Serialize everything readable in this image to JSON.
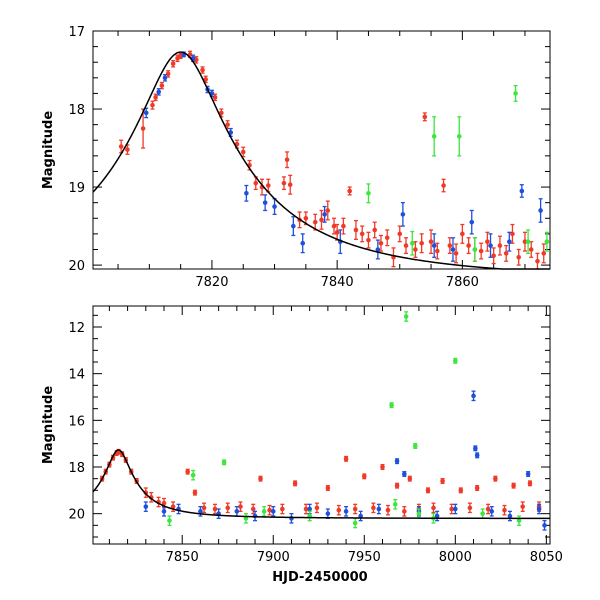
{
  "chart_data": [
    {
      "type": "scatter",
      "panel": "top",
      "xlabel": "",
      "ylabel": "Magnitude",
      "xlim": [
        7801,
        7874
      ],
      "ylim": [
        20.05,
        17.0
      ],
      "y_inverted": true,
      "x_ticks": [
        7820,
        7840,
        7860
      ],
      "y_ticks": [
        17,
        18,
        19,
        20
      ],
      "grid": false,
      "model_curve": {
        "peak_x": 7815.0,
        "peak_mag": 17.27,
        "amplitude_flux": 14.0,
        "tE_days": 5.5,
        "color": "#000000"
      },
      "series": [
        {
          "color": "#f03a28",
          "points": [
            [
              7805.5,
              18.48,
              0.08
            ],
            [
              7806.5,
              18.52,
              0.06
            ],
            [
              7809.0,
              18.25,
              0.25
            ],
            [
              7810.5,
              17.95,
              0.05
            ],
            [
              7811.0,
              17.85,
              0.04
            ],
            [
              7812.0,
              17.7,
              0.04
            ],
            [
              7813.0,
              17.55,
              0.04
            ],
            [
              7813.8,
              17.42,
              0.04
            ],
            [
              7814.5,
              17.35,
              0.04
            ],
            [
              7815.0,
              17.32,
              0.03
            ],
            [
              7816.5,
              17.3,
              0.04
            ],
            [
              7817.5,
              17.37,
              0.04
            ],
            [
              7818.5,
              17.5,
              0.04
            ],
            [
              7819.0,
              17.62,
              0.04
            ],
            [
              7820.5,
              17.85,
              0.04
            ],
            [
              7821.5,
              18.05,
              0.05
            ],
            [
              7822.5,
              18.2,
              0.05
            ],
            [
              7824.0,
              18.45,
              0.05
            ],
            [
              7825.0,
              18.55,
              0.06
            ],
            [
              7826.0,
              18.72,
              0.06
            ],
            [
              7827.0,
              18.95,
              0.08
            ],
            [
              7828.0,
              19.0,
              0.1
            ],
            [
              7829.0,
              18.98,
              0.08
            ],
            [
              7831.5,
              18.95,
              0.08
            ],
            [
              7832.0,
              18.65,
              0.1
            ],
            [
              7832.5,
              18.97,
              0.12
            ],
            [
              7834.0,
              19.42,
              0.1
            ],
            [
              7835.0,
              19.4,
              0.08
            ],
            [
              7836.5,
              19.45,
              0.1
            ],
            [
              7837.5,
              19.42,
              0.12
            ],
            [
              7838.5,
              19.3,
              0.12
            ],
            [
              7839.5,
              19.5,
              0.1
            ],
            [
              7840.0,
              19.58,
              0.1
            ],
            [
              7841.0,
              19.5,
              0.1
            ],
            [
              7842.0,
              19.05,
              0.05
            ],
            [
              7843.0,
              19.55,
              0.12
            ],
            [
              7844.0,
              19.6,
              0.1
            ],
            [
              7845.0,
              19.68,
              0.1
            ],
            [
              7846.0,
              19.55,
              0.1
            ],
            [
              7847.0,
              19.72,
              0.1
            ],
            [
              7848.0,
              19.65,
              0.1
            ],
            [
              7849.0,
              19.9,
              0.12
            ],
            [
              7850.0,
              19.6,
              0.1
            ],
            [
              7851.0,
              19.75,
              0.1
            ],
            [
              7852.5,
              19.8,
              0.1
            ],
            [
              7853.5,
              19.72,
              0.12
            ],
            [
              7854.0,
              18.1,
              0.05
            ],
            [
              7855.0,
              19.7,
              0.15
            ],
            [
              7856.0,
              19.82,
              0.1
            ],
            [
              7857.0,
              18.98,
              0.08
            ],
            [
              7858.0,
              19.75,
              0.1
            ],
            [
              7859.0,
              19.85,
              0.12
            ],
            [
              7860.0,
              19.6,
              0.12
            ],
            [
              7861.0,
              19.75,
              0.1
            ],
            [
              7862.0,
              19.8,
              0.15
            ],
            [
              7863.0,
              19.82,
              0.1
            ],
            [
              7864.0,
              19.7,
              0.12
            ],
            [
              7865.0,
              19.88,
              0.1
            ],
            [
              7866.0,
              19.75,
              0.12
            ],
            [
              7867.0,
              19.85,
              0.1
            ],
            [
              7868.0,
              19.6,
              0.12
            ],
            [
              7869.0,
              19.9,
              0.1
            ],
            [
              7870.0,
              19.7,
              0.12
            ],
            [
              7871.0,
              19.8,
              0.1
            ],
            [
              7872.0,
              19.95,
              0.1
            ],
            [
              7873.0,
              19.85,
              0.12
            ]
          ]
        },
        {
          "color": "#1e50dc",
          "points": [
            [
              7809.5,
              18.05,
              0.06
            ],
            [
              7811.5,
              17.78,
              0.04
            ],
            [
              7812.5,
              17.6,
              0.04
            ],
            [
              7815.5,
              17.3,
              0.03
            ],
            [
              7817.0,
              17.35,
              0.04
            ],
            [
              7819.3,
              17.75,
              0.04
            ],
            [
              7820.0,
              17.8,
              0.04
            ],
            [
              7823.0,
              18.3,
              0.05
            ],
            [
              7825.5,
              19.08,
              0.1
            ],
            [
              7828.5,
              19.2,
              0.1
            ],
            [
              7830.0,
              19.25,
              0.1
            ],
            [
              7833.0,
              19.5,
              0.12
            ],
            [
              7834.5,
              19.72,
              0.12
            ],
            [
              7838.0,
              19.35,
              0.1
            ],
            [
              7840.5,
              19.7,
              0.15
            ],
            [
              7846.5,
              19.8,
              0.12
            ],
            [
              7850.5,
              19.35,
              0.15
            ],
            [
              7855.5,
              19.75,
              0.15
            ],
            [
              7858.5,
              19.8,
              0.15
            ],
            [
              7861.5,
              19.45,
              0.15
            ],
            [
              7864.5,
              19.75,
              0.15
            ],
            [
              7867.5,
              19.7,
              0.12
            ],
            [
              7869.5,
              19.05,
              0.08
            ],
            [
              7872.5,
              19.3,
              0.15
            ]
          ]
        },
        {
          "color": "#3ce63c",
          "points": [
            [
              7845.0,
              19.08,
              0.12
            ],
            [
              7852.0,
              19.72,
              0.15
            ],
            [
              7855.5,
              18.35,
              0.25
            ],
            [
              7859.5,
              18.35,
              0.25
            ],
            [
              7862.0,
              19.8,
              0.15
            ],
            [
              7868.5,
              17.8,
              0.1
            ],
            [
              7870.5,
              19.7,
              0.15
            ],
            [
              7873.5,
              19.7,
              0.12
            ]
          ]
        }
      ]
    },
    {
      "type": "scatter",
      "panel": "bottom",
      "xlabel": "HJD-2450000",
      "ylabel": "Magnitude",
      "xlim": [
        7801,
        8052
      ],
      "ylim": [
        21.3,
        11.1
      ],
      "y_inverted": true,
      "x_ticks": [
        7850,
        7900,
        7950,
        8000,
        8050
      ],
      "y_ticks": [
        12,
        14,
        16,
        18,
        20
      ],
      "grid": false,
      "model_curve": {
        "peak_x": 7815.0,
        "peak_mag": 17.27,
        "amplitude_flux": 14.0,
        "tE_days": 5.5,
        "color": "#000000"
      },
      "series": [
        {
          "color": "#f03a28",
          "points": [
            [
              7806,
              18.5,
              0.1
            ],
            [
              7808,
              18.2,
              0.1
            ],
            [
              7810,
              17.9,
              0.1
            ],
            [
              7812,
              17.6,
              0.1
            ],
            [
              7814,
              17.4,
              0.1
            ],
            [
              7815,
              17.35,
              0.1
            ],
            [
              7817,
              17.45,
              0.1
            ],
            [
              7819,
              17.7,
              0.1
            ],
            [
              7822,
              18.2,
              0.1
            ],
            [
              7825,
              18.6,
              0.1
            ],
            [
              7830,
              19.1,
              0.2
            ],
            [
              7833,
              19.3,
              0.2
            ],
            [
              7837,
              19.5,
              0.2
            ],
            [
              7840,
              19.55,
              0.2
            ],
            [
              7845,
              19.7,
              0.2
            ],
            [
              7853,
              18.2,
              0.1
            ],
            [
              7857,
              19.1,
              0.1
            ],
            [
              7862,
              19.75,
              0.2
            ],
            [
              7868,
              19.8,
              0.2
            ],
            [
              7875,
              19.75,
              0.2
            ],
            [
              7882,
              19.7,
              0.2
            ],
            [
              7889,
              19.8,
              0.2
            ],
            [
              7893,
              18.5,
              0.1
            ],
            [
              7898,
              19.85,
              0.2
            ],
            [
              7905,
              19.8,
              0.2
            ],
            [
              7912,
              18.7,
              0.1
            ],
            [
              7918,
              19.8,
              0.2
            ],
            [
              7924,
              19.75,
              0.2
            ],
            [
              7930,
              18.9,
              0.1
            ],
            [
              7936,
              19.85,
              0.2
            ],
            [
              7940,
              17.65,
              0.1
            ],
            [
              7945,
              19.8,
              0.2
            ],
            [
              7950,
              18.4,
              0.1
            ],
            [
              7955,
              19.75,
              0.2
            ],
            [
              7960,
              18.0,
              0.1
            ],
            [
              7963,
              19.85,
              0.2
            ],
            [
              7968,
              18.8,
              0.1
            ],
            [
              7972,
              19.9,
              0.2
            ],
            [
              7975,
              18.5,
              0.1
            ],
            [
              7980,
              19.8,
              0.2
            ],
            [
              7985,
              19.0,
              0.1
            ],
            [
              7988,
              19.75,
              0.2
            ],
            [
              7993,
              18.6,
              0.1
            ],
            [
              7998,
              19.8,
              0.2
            ],
            [
              8003,
              19.0,
              0.1
            ],
            [
              8008,
              19.75,
              0.2
            ],
            [
              8012,
              18.9,
              0.1
            ],
            [
              8018,
              19.8,
              0.2
            ],
            [
              8022,
              18.5,
              0.1
            ],
            [
              8027,
              19.85,
              0.2
            ],
            [
              8032,
              18.8,
              0.1
            ],
            [
              8037,
              19.7,
              0.2
            ],
            [
              8041,
              18.7,
              0.1
            ],
            [
              8046,
              19.7,
              0.2
            ]
          ]
        },
        {
          "color": "#1e50dc",
          "points": [
            [
              7830,
              19.7,
              0.2
            ],
            [
              7840,
              19.9,
              0.2
            ],
            [
              7848,
              19.8,
              0.2
            ],
            [
              7860,
              19.9,
              0.2
            ],
            [
              7870,
              20.0,
              0.2
            ],
            [
              7880,
              19.9,
              0.2
            ],
            [
              7890,
              20.1,
              0.2
            ],
            [
              7900,
              19.9,
              0.2
            ],
            [
              7910,
              20.2,
              0.2
            ],
            [
              7920,
              19.8,
              0.2
            ],
            [
              7930,
              20.0,
              0.2
            ],
            [
              7940,
              19.9,
              0.2
            ],
            [
              7948,
              20.1,
              0.2
            ],
            [
              7958,
              19.8,
              0.2
            ],
            [
              7968,
              17.75,
              0.1
            ],
            [
              7972,
              18.3,
              0.1
            ],
            [
              7980,
              19.9,
              0.2
            ],
            [
              7990,
              20.1,
              0.2
            ],
            [
              8000,
              19.8,
              0.2
            ],
            [
              8010,
              14.95,
              0.2
            ],
            [
              8011,
              17.2,
              0.1
            ],
            [
              8012,
              17.5,
              0.1
            ],
            [
              8020,
              19.9,
              0.2
            ],
            [
              8030,
              20.1,
              0.2
            ],
            [
              8040,
              18.3,
              0.1
            ],
            [
              8046,
              19.8,
              0.2
            ],
            [
              8049,
              20.5,
              0.2
            ]
          ]
        },
        {
          "color": "#3ce63c",
          "points": [
            [
              7843,
              20.3,
              0.2
            ],
            [
              7856,
              18.35,
              0.2
            ],
            [
              7873,
              17.8,
              0.1
            ],
            [
              7885,
              20.2,
              0.2
            ],
            [
              7895,
              19.9,
              0.2
            ],
            [
              7920,
              20.1,
              0.2
            ],
            [
              7945,
              20.4,
              0.2
            ],
            [
              7965,
              15.35,
              0.1
            ],
            [
              7967,
              19.6,
              0.2
            ],
            [
              7973,
              11.55,
              0.2
            ],
            [
              7978,
              17.1,
              0.1
            ],
            [
              7980,
              20.0,
              0.2
            ],
            [
              7988,
              20.2,
              0.2
            ],
            [
              8000,
              13.45,
              0.1
            ],
            [
              8015,
              20.0,
              0.2
            ],
            [
              8035,
              20.3,
              0.2
            ]
          ]
        }
      ]
    }
  ]
}
